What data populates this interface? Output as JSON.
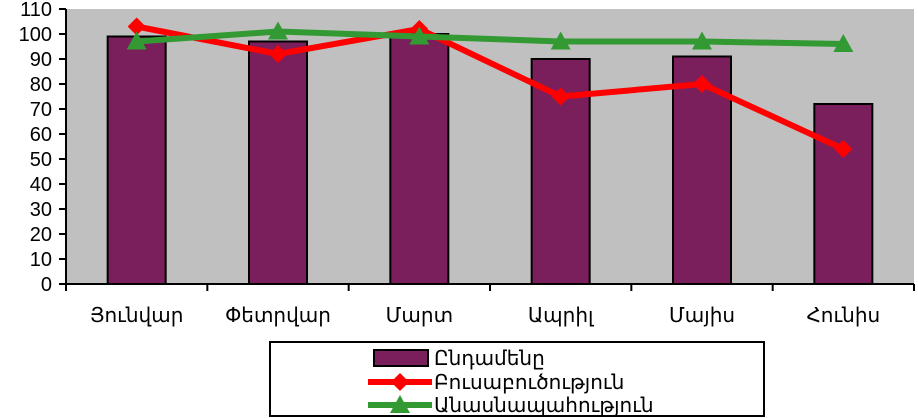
{
  "chart_data": {
    "type": "bar",
    "categories": [
      "Յունվար",
      "Փետրվար",
      "Մարտ",
      "Ապրիլ",
      "Մայիս",
      "Հունիս"
    ],
    "ylim": [
      0,
      110
    ],
    "yticks": [
      0,
      10,
      20,
      30,
      40,
      50,
      60,
      70,
      80,
      90,
      100,
      110
    ],
    "grid": false,
    "legend_position": "bottom",
    "plot_background": "#c0c0c0",
    "series": [
      {
        "name": "Ընդամենը",
        "type": "bar",
        "color": "#7b1f5c",
        "values": [
          99,
          97,
          100,
          90,
          91,
          72
        ]
      },
      {
        "name": "Բուսաբուծություն",
        "type": "line",
        "marker": "diamond",
        "color": "#ff0000",
        "values": [
          103,
          92,
          102,
          75,
          80,
          54
        ]
      },
      {
        "name": "Անասնապահություն",
        "type": "line",
        "marker": "triangle",
        "color": "#339933",
        "values": [
          97,
          101,
          99,
          97,
          97,
          96
        ]
      }
    ]
  }
}
